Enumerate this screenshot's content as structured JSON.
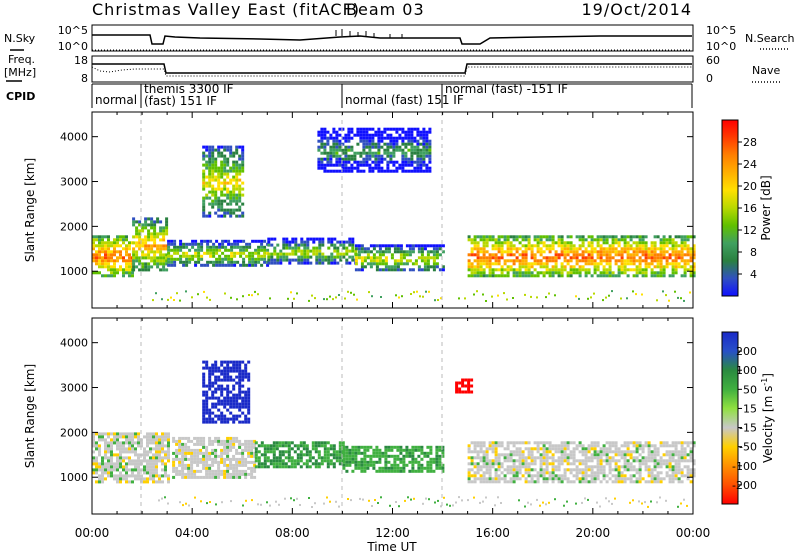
{
  "header": {
    "title": "Christmas Valley East (fitACF)",
    "beam": "Beam 03",
    "date": "19/Oct/2014"
  },
  "strips": {
    "nsky_label": "N.Sky",
    "nsky_ticks": [
      "10^5",
      "10^0"
    ],
    "nsearch_label": "N.Search",
    "nsearch_ticks": [
      "10^5",
      "10^0"
    ],
    "freq_label_line1": "Freq.",
    "freq_label_line2": "[MHz]",
    "freq_ticks": [
      "18",
      "8"
    ],
    "nave_label": "Nave",
    "nave_ticks": [
      "60",
      "0"
    ],
    "cpid_label": "CPID",
    "cpid_modes": [
      {
        "line1": "normal",
        "line2": ""
      },
      {
        "line1": "themis 3300 IF",
        "line2": "(fast) 151 IF"
      },
      {
        "line1": "normal (fast) 151 IF",
        "line2": ""
      },
      {
        "line1": "normal (fast) -151 IF",
        "line2": ""
      }
    ]
  },
  "colorbars": {
    "power": {
      "title": "Power [dB]",
      "ticks": [
        "28",
        "24",
        "20",
        "16",
        "12",
        "8",
        "4"
      ],
      "colors": [
        "#ff0000",
        "#ff3c00",
        "#ff8000",
        "#ffb000",
        "#ffe000",
        "#b8d800",
        "#60c000",
        "#40a060",
        "#2a8040",
        "#3050c0",
        "#1010ff"
      ]
    },
    "velocity": {
      "title_main": "Velocity [m s",
      "title_sup": "-1",
      "title_end": "]",
      "ticks": [
        "200",
        "100",
        "50",
        "15",
        "-15",
        "-50",
        "-100",
        "-200"
      ],
      "colors": [
        "#1a2ac8",
        "#2850c8",
        "#2a8a40",
        "#40b040",
        "#90e040",
        "#c8c8c8",
        "#ffd000",
        "#ff9000",
        "#ff5000",
        "#ff0000"
      ]
    }
  },
  "chart_data": [
    {
      "type": "heatmap",
      "name": "power",
      "ylabel": "Slant Range [km]",
      "yticks": [
        "1000",
        "2000",
        "3000",
        "4000"
      ],
      "ylim": [
        180,
        4550
      ],
      "xlim": [
        0,
        24
      ],
      "xticks": [
        "00:00",
        "04:00",
        "08:00",
        "12:00",
        "16:00",
        "20:00",
        "00:00"
      ],
      "bands": [
        {
          "t0": 0.0,
          "t1": 1.6,
          "r0": 900,
          "r1": 1800,
          "level": 0.85
        },
        {
          "t0": 1.6,
          "t1": 3.0,
          "r0": 1000,
          "r1": 2200,
          "level": 0.7
        },
        {
          "t0": 3.0,
          "t1": 7.0,
          "r0": 1100,
          "r1": 1700,
          "level": 0.55
        },
        {
          "t0": 4.4,
          "t1": 6.0,
          "r0": 2200,
          "r1": 3800,
          "level": 0.6
        },
        {
          "t0": 7.0,
          "t1": 10.5,
          "r0": 1150,
          "r1": 1750,
          "level": 0.5
        },
        {
          "t0": 10.5,
          "t1": 14.0,
          "r0": 1000,
          "r1": 1600,
          "level": 0.55
        },
        {
          "t0": 15.0,
          "t1": 24.0,
          "r0": 900,
          "r1": 1800,
          "level": 0.85
        },
        {
          "t0": 9.0,
          "t1": 13.5,
          "r0": 3200,
          "r1": 4200,
          "level": 0.3
        }
      ]
    },
    {
      "type": "heatmap",
      "name": "velocity",
      "ylabel": "Slant Range [km]",
      "yticks": [
        "1000",
        "2000",
        "3000",
        "4000"
      ],
      "ylim": [
        180,
        4550
      ],
      "xlim": [
        0,
        24
      ],
      "xticks": [
        "00:00",
        "04:00",
        "08:00",
        "12:00",
        "16:00",
        "20:00",
        "00:00"
      ],
      "xlabel": "Time UT",
      "bands": [
        {
          "t0": 0.0,
          "t1": 3.0,
          "r0": 900,
          "r1": 2000,
          "vel": 0
        },
        {
          "t0": 3.2,
          "t1": 6.5,
          "r0": 1000,
          "r1": 1900,
          "vel": 0
        },
        {
          "t0": 4.4,
          "t1": 6.2,
          "r0": 2200,
          "r1": 3600,
          "vel": 200
        },
        {
          "t0": 6.5,
          "t1": 10.0,
          "r0": 1200,
          "r1": 1800,
          "vel": 50
        },
        {
          "t0": 10.0,
          "t1": 14.0,
          "r0": 1100,
          "r1": 1700,
          "vel": 40
        },
        {
          "t0": 15.0,
          "t1": 24.0,
          "r0": 900,
          "r1": 1800,
          "vel": 0
        },
        {
          "t0": 14.5,
          "t1": 15.2,
          "r0": 2900,
          "r1": 3200,
          "vel": -200
        }
      ]
    }
  ]
}
